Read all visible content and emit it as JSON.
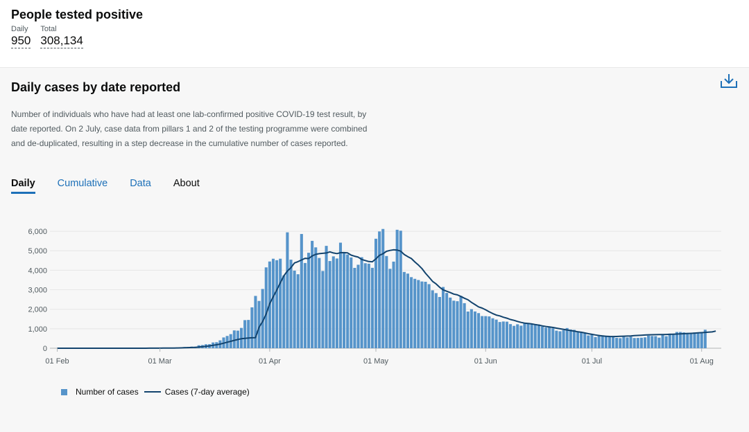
{
  "header": {
    "title": "People tested positive",
    "daily_label": "Daily",
    "daily_value": "950",
    "total_label": "Total",
    "total_value": "308,134"
  },
  "card": {
    "title": "Daily cases by date reported",
    "description": "Number of individuals who have had at least one lab-confirmed positive COVID-19 test result, by date reported. On 2 July, case data from pillars 1 and 2 of the testing programme were combined and de-duplicated, resulting in a step decrease in the cumulative number of cases reported.",
    "download_icon": "download-icon"
  },
  "tabs": [
    {
      "label": "Daily",
      "active": true
    },
    {
      "label": "Cumulative",
      "active": false
    },
    {
      "label": "Data",
      "active": false
    },
    {
      "label": "About",
      "active": false
    }
  ],
  "legend": {
    "bars_label": "Number of cases",
    "line_label": "Cases (7-day average)"
  },
  "colors": {
    "bar": "#5694ca",
    "line": "#12436d",
    "tab_link": "#1d70b8"
  },
  "chart_data": {
    "type": "bar",
    "title": "Daily cases by date reported",
    "xlabel": "",
    "ylabel": "",
    "ylim": [
      0,
      6500
    ],
    "yticks": [
      0,
      1000,
      2000,
      3000,
      4000,
      5000,
      6000
    ],
    "ytick_labels": [
      "0",
      "1,000",
      "2,000",
      "3,000",
      "4,000",
      "5,000",
      "6,000"
    ],
    "xticks": [
      {
        "day": 0,
        "label": "01 Feb"
      },
      {
        "day": 29,
        "label": "01 Mar"
      },
      {
        "day": 60,
        "label": "01 Apr"
      },
      {
        "day": 90,
        "label": "01 May"
      },
      {
        "day": 121,
        "label": "01 Jun"
      },
      {
        "day": 151,
        "label": "01 Jul"
      },
      {
        "day": 182,
        "label": "01 Aug"
      }
    ],
    "start_date": "01 Feb",
    "legend_position": "bottom-left",
    "series": [
      {
        "name": "Number of cases",
        "kind": "bar",
        "values": [
          0,
          0,
          0,
          0,
          0,
          0,
          0,
          0,
          0,
          1,
          0,
          0,
          0,
          1,
          0,
          0,
          0,
          0,
          1,
          0,
          0,
          0,
          1,
          2,
          0,
          3,
          5,
          4,
          5,
          12,
          17,
          18,
          21,
          37,
          26,
          48,
          62,
          67,
          81,
          82,
          151,
          163,
          203,
          208,
          296,
          309,
          405,
          553,
          630,
          723,
          915,
          903,
          1042,
          1442,
          1452,
          2098,
          2684,
          2426,
          3040,
          4148,
          4450,
          4592,
          4517,
          4593,
          3730,
          5946,
          4544,
          3982,
          3796,
          5862,
          4372,
          4898,
          5509,
          5175,
          4631,
          3963,
          5252,
          4473,
          4713,
          4604,
          5416,
          4934,
          4810,
          4657,
          4122,
          4283,
          4670,
          4361,
          4337,
          4125,
          5618,
          5992,
          6119,
          4731,
          4075,
          4444,
          6078,
          6030,
          3914,
          3829,
          3647,
          3561,
          3499,
          3424,
          3410,
          3287,
          2971,
          2828,
          2629,
          3142,
          2837,
          2598,
          2440,
          2412,
          2684,
          2312,
          1882,
          2005,
          1886,
          1802,
          1650,
          1648,
          1632,
          1537,
          1469,
          1345,
          1371,
          1363,
          1237,
          1148,
          1228,
          1157,
          1311,
          1285,
          1251,
          1242,
          1219,
          1113,
          1059,
          1069,
          1024,
          901,
          870,
          924,
          1036,
          960,
          943,
          874,
          832,
          782,
          657,
          689,
          574,
          620,
          663,
          634,
          577,
          593,
          532,
          518,
          583,
          553,
          593,
          525,
          530,
          540,
          559,
          644,
          626,
          619,
          542,
          685,
          615,
          750,
          736,
          834,
          834,
          812,
          793,
          786,
          813,
          768,
          836,
          950
        ]
      },
      {
        "name": "Cases (7-day average)",
        "kind": "line",
        "values": [
          0,
          0,
          0,
          0,
          0,
          0,
          0,
          0,
          0,
          0,
          0,
          0,
          0,
          0,
          0,
          0,
          0,
          0,
          0,
          0,
          0,
          0,
          0,
          0,
          1,
          1,
          2,
          2,
          3,
          4,
          6,
          7,
          9,
          12,
          14,
          19,
          25,
          31,
          38,
          47,
          59,
          78,
          98,
          122,
          148,
          177,
          212,
          261,
          309,
          355,
          404,
          449,
          487,
          504,
          525,
          535,
          544,
          1080,
          1370,
          1755,
          2290,
          2640,
          2990,
          3357,
          3714,
          3962,
          4133,
          4377,
          4445,
          4527,
          4613,
          4600,
          4736,
          4818,
          4852,
          4868,
          4889,
          4944,
          4888,
          4856,
          4900,
          4905,
          4891,
          4777,
          4720,
          4673,
          4554,
          4499,
          4447,
          4437,
          4586,
          4766,
          4849,
          4971,
          5020,
          5050,
          5036,
          4980,
          4810,
          4700,
          4603,
          4425,
          4268,
          4090,
          3852,
          3644,
          3431,
          3299,
          3131,
          2996,
          2923,
          2854,
          2779,
          2737,
          2657,
          2565,
          2487,
          2351,
          2238,
          2121,
          2060,
          1972,
          1868,
          1781,
          1702,
          1659,
          1591,
          1540,
          1474,
          1432,
          1376,
          1325,
          1290,
          1270,
          1246,
          1216,
          1186,
          1148,
          1115,
          1093,
          1067,
          1031,
          999,
          970,
          939,
          905,
          878,
          847,
          820,
          784,
          745,
          713,
          683,
          652,
          627,
          615,
          604,
          601,
          603,
          610,
          619,
          625,
          634,
          646,
          658,
          668,
          679,
          688,
          694,
          697,
          700,
          702,
          706,
          714,
          721,
          728,
          737,
          747,
          754,
          762,
          775,
          789,
          800,
          812,
          825,
          838,
          880
        ]
      }
    ]
  }
}
